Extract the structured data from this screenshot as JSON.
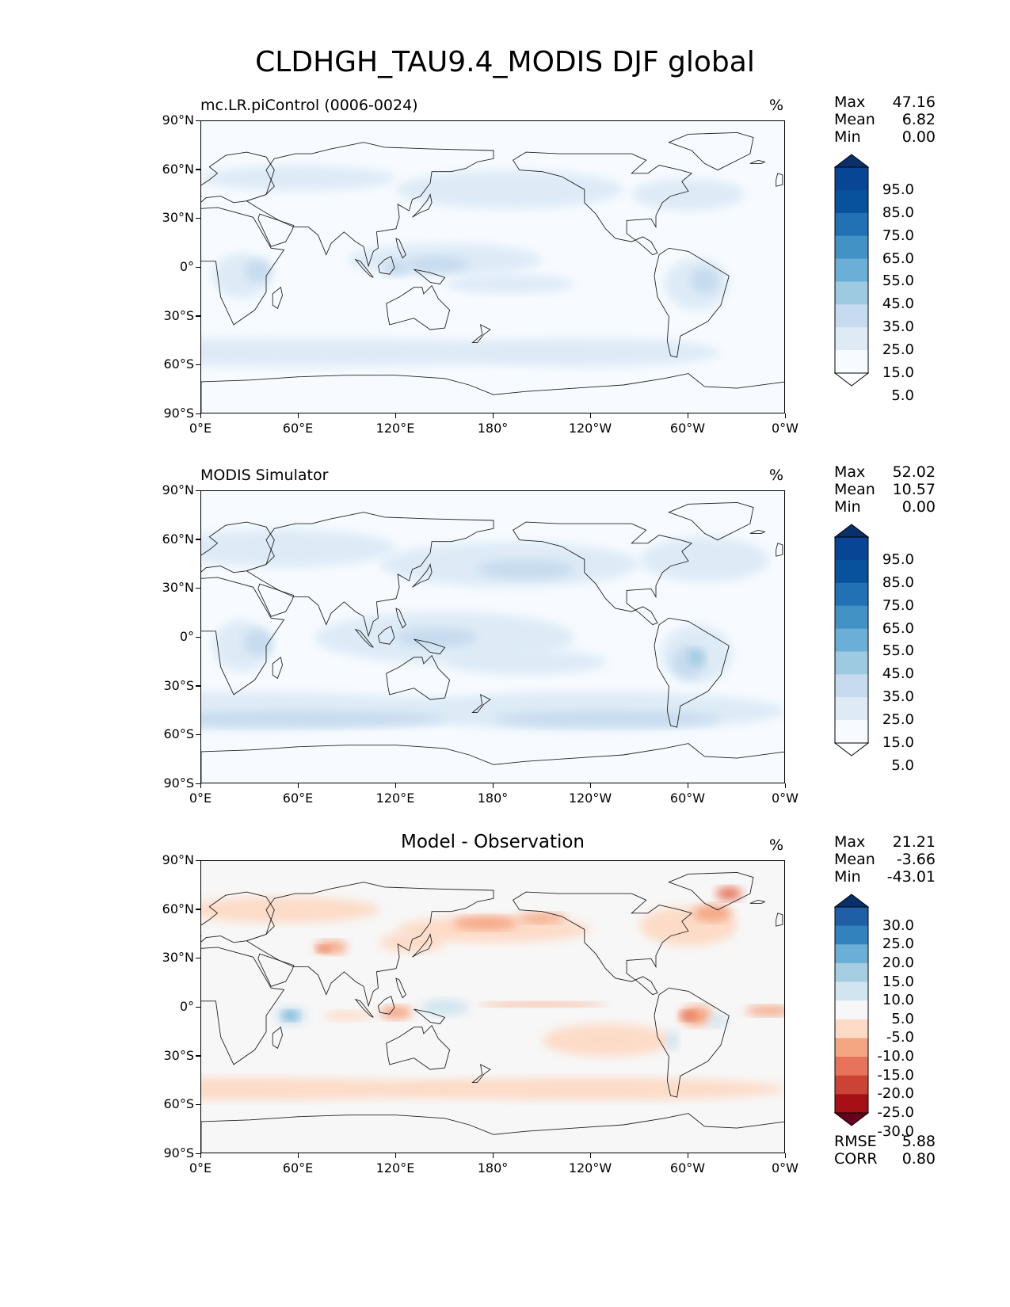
{
  "figure_title": "CLDHGH_TAU9.4_MODIS DJF global",
  "lat_ticks": [
    "90°N",
    "60°N",
    "30°N",
    "0°",
    "30°S",
    "60°S",
    "90°S"
  ],
  "lon_ticks": [
    "0°E",
    "60°E",
    "120°E",
    "180°",
    "120°W",
    "60°W",
    "0°W"
  ],
  "panels": [
    {
      "title": "mc.LR.piControl (0006-0024)",
      "title_style": "left",
      "units": "%",
      "stats": [
        {
          "label": "Max",
          "value": "47.16"
        },
        {
          "label": "Mean",
          "value": "6.82"
        },
        {
          "label": "Min",
          "value": "0.00"
        }
      ],
      "colorbar": {
        "colors": [
          "#ffffff",
          "#f7fbff",
          "#deebf7",
          "#c6dbef",
          "#9ecae1",
          "#6baed6",
          "#4292c6",
          "#2171b5",
          "#08519c",
          "#084594",
          "#08306b"
        ],
        "labels": [
          "95.0",
          "85.0",
          "75.0",
          "65.0",
          "55.0",
          "45.0",
          "35.0",
          "25.0",
          "15.0",
          "5.0"
        ]
      }
    },
    {
      "title": "MODIS Simulator",
      "title_style": "left",
      "units": "%",
      "stats": [
        {
          "label": "Max",
          "value": "52.02"
        },
        {
          "label": "Mean",
          "value": "10.57"
        },
        {
          "label": "Min",
          "value": "0.00"
        }
      ],
      "colorbar": {
        "colors": [
          "#ffffff",
          "#f7fbff",
          "#deebf7",
          "#c6dbef",
          "#9ecae1",
          "#6baed6",
          "#4292c6",
          "#2171b5",
          "#08519c",
          "#084594",
          "#08306b"
        ],
        "labels": [
          "95.0",
          "85.0",
          "75.0",
          "65.0",
          "55.0",
          "45.0",
          "35.0",
          "25.0",
          "15.0",
          "5.0"
        ]
      }
    },
    {
      "title": "Model - Observation",
      "title_style": "center",
      "units": "%",
      "stats": [
        {
          "label": "Max",
          "value": "21.21"
        },
        {
          "label": "Mean",
          "value": "-3.66"
        },
        {
          "label": "Min",
          "value": "-43.01"
        }
      ],
      "extra_stats": [
        {
          "label": "RMSE",
          "value": "5.88"
        },
        {
          "label": "CORR",
          "value": "0.80"
        }
      ],
      "colorbar": {
        "colors": [
          "#67001f",
          "#a50f15",
          "#cb4335",
          "#e6735a",
          "#f4a582",
          "#fddbc7",
          "#f7f7f7",
          "#d1e5f0",
          "#a6cee3",
          "#6baed6",
          "#3182bd",
          "#1f5fa6",
          "#08306b"
        ],
        "labels": [
          "30.0",
          "25.0",
          "20.0",
          "15.0",
          "10.0",
          "5.0",
          "-5.0",
          "-10.0",
          "-15.0",
          "-20.0",
          "-25.0",
          "-30.0"
        ]
      }
    }
  ]
}
